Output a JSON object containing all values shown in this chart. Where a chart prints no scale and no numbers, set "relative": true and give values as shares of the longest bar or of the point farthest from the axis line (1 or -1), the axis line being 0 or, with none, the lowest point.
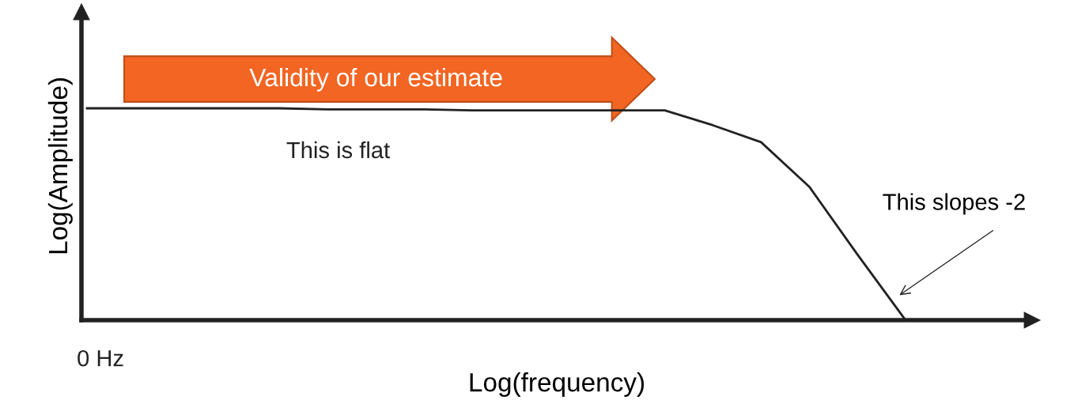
{
  "chart_data": {
    "type": "line",
    "relative": true,
    "xlabel": "Log(frequency)",
    "ylabel": "Log(Amplitude)",
    "categories": [
      null,
      null,
      null,
      null,
      null,
      null,
      null,
      null,
      null,
      null,
      null,
      null,
      null,
      null,
      null,
      null,
      null,
      null
    ],
    "series": [
      {
        "color": "#222222",
        "values": [
          1.0,
          1.0,
          1.0,
          1.0,
          1.0,
          0.995,
          0.995,
          0.995,
          0.99,
          0.99,
          0.99,
          0.99,
          0.99,
          0.92,
          0.84,
          0.63,
          0.31,
          0.0
        ]
      }
    ],
    "annotations": [
      "Validity of our estimate",
      "This is flat",
      "This slopes -2",
      "0 Hz"
    ],
    "legend": false,
    "marker": "none",
    "line_style": "solid"
  }
}
